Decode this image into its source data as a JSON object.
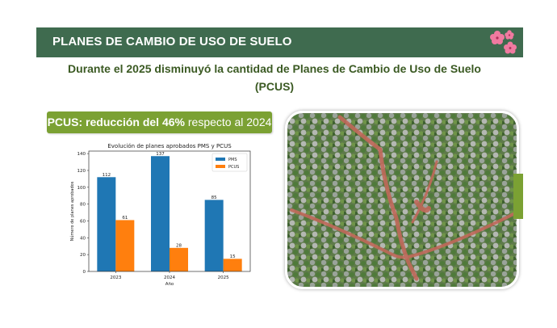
{
  "header": {
    "title": "PLANES DE CAMBIO DE USO DE SUELO",
    "bar_color": "#3f6b4f",
    "decoration": "pink-flowers-icon"
  },
  "subtitle": {
    "line1": "Durante el 2025 disminuyó la cantidad de Planes de Cambio de Uso de Suelo",
    "line2": "(PCUS)"
  },
  "badge": {
    "bold_text": "PCUS: reducción del 46%",
    "normal_text": " respecto al 2024",
    "color": "#7ba133"
  },
  "photo": {
    "description": "Aerial view of forest with red dirt roads"
  },
  "chart_data": {
    "type": "bar",
    "title": "Evolución de planes aprobados PMS y PCUS",
    "xlabel": "Año",
    "ylabel": "Número de planes aprobados",
    "categories": [
      "2023",
      "2024",
      "2025"
    ],
    "series": [
      {
        "name": "PMS",
        "values": [
          112,
          137,
          85
        ],
        "color": "#1f77b4"
      },
      {
        "name": "PCUS",
        "values": [
          61,
          28,
          15
        ],
        "color": "#ff7f0e"
      }
    ],
    "ylim": [
      0,
      143
    ],
    "yticks": [
      0,
      20,
      40,
      60,
      80,
      100,
      120,
      140
    ],
    "grid": false,
    "legend_position": "upper right",
    "data_labels": true
  }
}
